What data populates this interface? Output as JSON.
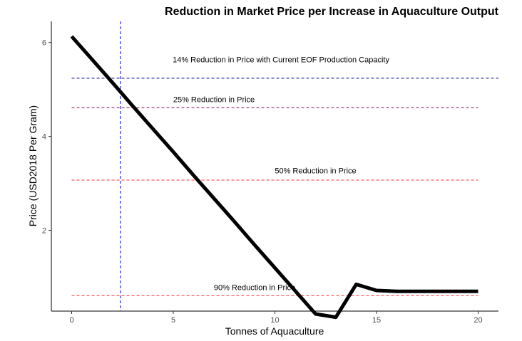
{
  "chart_data": {
    "type": "line",
    "title": "Reduction in Market Price per Increase in Aquaculture Output",
    "xlabel": "Tonnes of Aquaculture",
    "ylabel": "Price (USD2018 Per Gram)",
    "xlim": [
      -1,
      21
    ],
    "ylim": [
      0.28,
      6.45
    ],
    "xticks": [
      0,
      5,
      10,
      15,
      20
    ],
    "xtick_labels": [
      "0",
      "5",
      "10",
      "15",
      "20"
    ],
    "yticks": [
      2,
      4,
      6
    ],
    "ytick_labels": [
      "2",
      "4",
      "6"
    ],
    "grid": false,
    "legend": "none",
    "series": [
      {
        "x": [
          0,
          1,
          2,
          3,
          4,
          5,
          6,
          7,
          8,
          9,
          10,
          11,
          12,
          13,
          14,
          15,
          16,
          17,
          18,
          19,
          20
        ],
        "y": [
          6.13,
          5.64,
          5.15,
          4.65,
          4.16,
          3.67,
          3.17,
          2.68,
          2.19,
          1.69,
          1.2,
          0.71,
          0.22,
          0.15,
          0.85,
          0.72,
          0.7,
          0.7,
          0.7,
          0.7,
          0.7
        ],
        "color": "#000000"
      }
    ],
    "reference_lines": [
      {
        "orientation": "horizontal",
        "value": 5.24,
        "color": "#00008B",
        "label": "14% Reduction in Price with Current EOF Production Capacity",
        "label_x": 10.3,
        "label_y": 5.58
      },
      {
        "orientation": "horizontal",
        "value": 4.61,
        "color": "#8B0A50",
        "label": "25% Reduction in Price",
        "label_x": 7.0,
        "label_y": 4.73
      },
      {
        "orientation": "horizontal",
        "value": 3.07,
        "color": "#FF3030",
        "label": "50% Reduction in Price",
        "label_x": 12.0,
        "label_y": 3.21
      },
      {
        "orientation": "horizontal",
        "value": 0.61,
        "color": "#FF3030",
        "label": "90% Reduction in Price",
        "label_x": 9.0,
        "label_y": 0.73
      },
      {
        "orientation": "vertical",
        "value": 2.4,
        "color": "#0000CD",
        "label": ""
      }
    ]
  }
}
